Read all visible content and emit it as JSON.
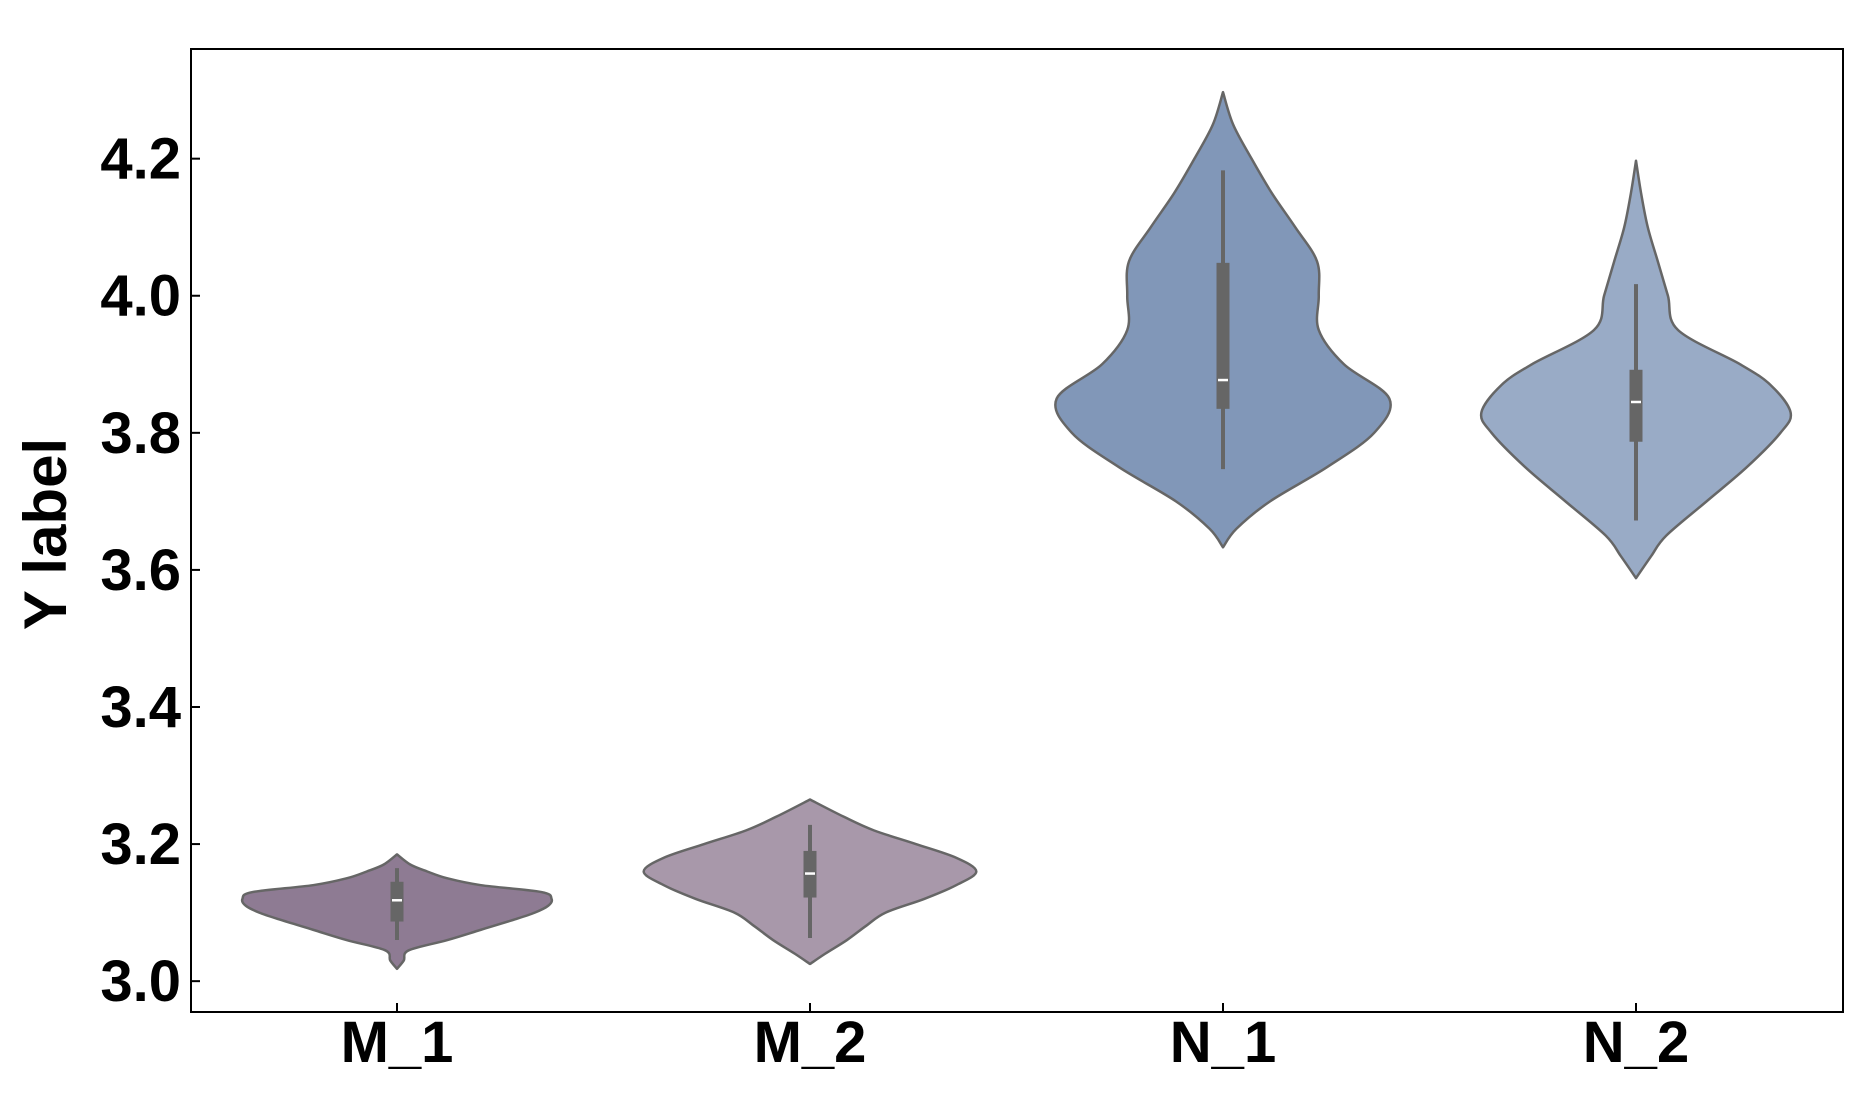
{
  "chart_data": {
    "type": "violin",
    "title": "",
    "xlabel": "",
    "ylabel": "Y label",
    "ylim": [
      2.955,
      4.36
    ],
    "yticks": [
      3.0,
      3.2,
      3.4,
      3.6,
      3.8,
      4.0,
      4.2
    ],
    "ytick_labels": [
      "3.0",
      "3.2",
      "3.4",
      "3.6",
      "3.8",
      "4.0",
      "4.2"
    ],
    "grid": false,
    "legend": "none",
    "categories": [
      "M_1",
      "M_2",
      "N_1",
      "N_2"
    ],
    "violins": [
      {
        "category": "M_1",
        "color": "#8e7b93",
        "median": 3.118,
        "q1": 3.087,
        "q3": 3.145,
        "whisker_low": 3.06,
        "whisker_high": 3.165,
        "range": [
          3.018,
          3.185
        ],
        "profile": [
          [
            3.018,
            0.0
          ],
          [
            3.03,
            0.04
          ],
          [
            3.045,
            0.07
          ],
          [
            3.06,
            0.3
          ],
          [
            3.075,
            0.5
          ],
          [
            3.09,
            0.7
          ],
          [
            3.1,
            0.82
          ],
          [
            3.11,
            0.9
          ],
          [
            3.12,
            0.92
          ],
          [
            3.13,
            0.86
          ],
          [
            3.14,
            0.5
          ],
          [
            3.15,
            0.3
          ],
          [
            3.16,
            0.18
          ],
          [
            3.17,
            0.08
          ],
          [
            3.185,
            0.0
          ]
        ]
      },
      {
        "category": "M_2",
        "color": "#a898aa",
        "median": 3.157,
        "q1": 3.122,
        "q3": 3.19,
        "whisker_low": 3.063,
        "whisker_high": 3.228,
        "range": [
          3.025,
          3.265
        ],
        "profile": [
          [
            3.025,
            0.0
          ],
          [
            3.04,
            0.09
          ],
          [
            3.06,
            0.22
          ],
          [
            3.08,
            0.33
          ],
          [
            3.1,
            0.45
          ],
          [
            3.12,
            0.68
          ],
          [
            3.14,
            0.87
          ],
          [
            3.16,
            0.99
          ],
          [
            3.18,
            0.87
          ],
          [
            3.2,
            0.63
          ],
          [
            3.22,
            0.38
          ],
          [
            3.24,
            0.2
          ],
          [
            3.265,
            0.0
          ]
        ]
      },
      {
        "category": "N_1",
        "color": "#8197b8",
        "median": 3.877,
        "q1": 3.835,
        "q3": 4.048,
        "whisker_low": 3.747,
        "whisker_high": 4.183,
        "range": [
          3.633,
          4.297
        ],
        "profile": [
          [
            3.633,
            0.0
          ],
          [
            3.66,
            0.08
          ],
          [
            3.7,
            0.28
          ],
          [
            3.75,
            0.62
          ],
          [
            3.8,
            0.9
          ],
          [
            3.85,
            0.99
          ],
          [
            3.9,
            0.72
          ],
          [
            3.95,
            0.57
          ],
          [
            4.0,
            0.57
          ],
          [
            4.05,
            0.56
          ],
          [
            4.1,
            0.43
          ],
          [
            4.15,
            0.29
          ],
          [
            4.2,
            0.17
          ],
          [
            4.25,
            0.06
          ],
          [
            4.297,
            0.0
          ]
        ]
      },
      {
        "category": "N_2",
        "color": "#99abc6",
        "median": 3.845,
        "q1": 3.787,
        "q3": 3.892,
        "whisker_low": 3.672,
        "whisker_high": 4.017,
        "range": [
          3.588,
          4.197
        ],
        "profile": [
          [
            3.588,
            0.0
          ],
          [
            3.62,
            0.09
          ],
          [
            3.65,
            0.18
          ],
          [
            3.7,
            0.42
          ],
          [
            3.75,
            0.66
          ],
          [
            3.8,
            0.86
          ],
          [
            3.83,
            0.92
          ],
          [
            3.87,
            0.8
          ],
          [
            3.9,
            0.62
          ],
          [
            3.95,
            0.25
          ],
          [
            4.0,
            0.19
          ],
          [
            4.05,
            0.13
          ],
          [
            4.1,
            0.07
          ],
          [
            4.15,
            0.03
          ],
          [
            4.197,
            0.0
          ]
        ]
      }
    ]
  }
}
